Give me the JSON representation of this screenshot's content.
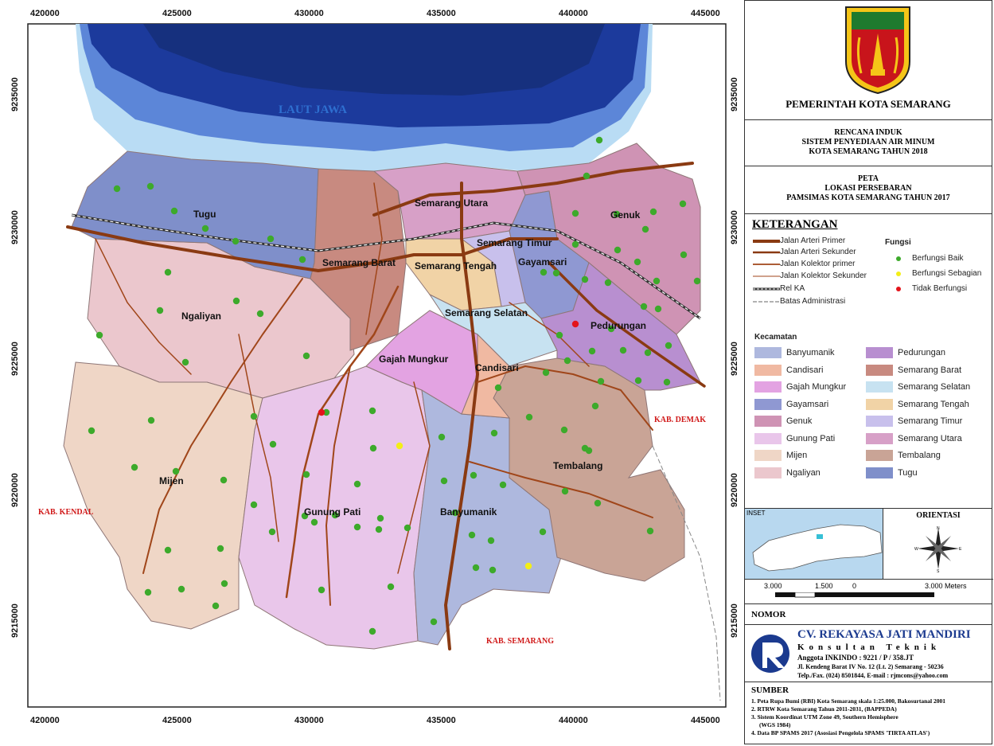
{
  "map": {
    "x_ticks": [
      "420000",
      "425000",
      "430000",
      "435000",
      "440000",
      "445000"
    ],
    "y_ticks": [
      "9235000",
      "9230000",
      "9225000",
      "9220000",
      "9215000"
    ],
    "sea_label": "LAUT JAWA",
    "districts": {
      "tugu": "Tugu",
      "ngaliyan": "Ngaliyan",
      "mijen": "Mijen",
      "gunung_pati": "Gunung Pati",
      "banyumanik": "Banyumanik",
      "semarang_barat": "Semarang Barat",
      "semarang_utara": "Semarang Utara",
      "semarang_tengah": "Semarang Tengah",
      "semarang_timur": "Semarang Timur",
      "gayamsari": "Gayamsari",
      "genuk": "Genuk",
      "pedurungan": "Pedurungan",
      "semarang_selatan": "Semarang Selatan",
      "gajah_mungkur": "Gajah Mungkur",
      "candisari": "Candisari",
      "tembalang": "Tembalang"
    },
    "regions": {
      "kendal": "KAB. KENDAL",
      "semarang": "KAB. SEMARANG",
      "demak": "KAB. DEMAK"
    },
    "colors": {
      "tugu": "#7f8fca",
      "ngaliyan": "#ebc7cd",
      "mijen": "#efd6c6",
      "gunung_pati": "#e9c6ea",
      "banyumanik": "#aeb8de",
      "semarang_barat": "#c88a80",
      "semarang_utara": "#d7a0c7",
      "semarang_tengah": "#f1d3a6",
      "semarang_timur": "#c8c0ec",
      "gayamsari": "#8f98d2",
      "genuk": "#cf93b4",
      "pedurungan": "#b88fd0",
      "semarang_selatan": "#c7e2f1",
      "gajah_mungkur": "#e3a3e2",
      "candisari": "#f0b9a2",
      "tembalang": "#c9a496",
      "arterial": "#8a3a12",
      "collector": "#a0461a",
      "sea_deep": "#1c3a9c",
      "sea_shallow": "#b9dcf4",
      "dot_good": "#3daa2b",
      "dot_partial": "#f3ee17",
      "dot_bad": "#e3141b"
    }
  },
  "panel": {
    "government": "PEMERINTAH KOTA SEMARANG",
    "plan_lines": [
      "RENCANA INDUK",
      "SISTEM PENYEDIAAN AIR MINUM",
      "KOTA SEMARANG TAHUN 2018"
    ],
    "title_lines": [
      "PETA",
      "LOKASI PERSEBARAN",
      "PAMSIMAS KOTA SEMARANG TAHUN 2017"
    ],
    "legend": {
      "heading": "KETERANGAN",
      "roads": [
        "Jalan Arteri Primer",
        "Jalan Arteri Sekunder",
        "Jalan Kolektor primer",
        "Jalan Kolektor Sekunder",
        "Rel KA",
        "Batas Administrasi"
      ],
      "function_heading": "Fungsi",
      "functions": [
        "Berfungsi Baik",
        "Berfungsi Sebagian",
        "Tidak Berfungsi"
      ],
      "kecamatan_heading": "Kecamatan",
      "kecamatan_left": [
        "Banyumanik",
        "Candisari",
        "Gajah Mungkur",
        "Gayamsari",
        "Genuk",
        "Gunung Pati",
        "Mijen",
        "Ngaliyan"
      ],
      "kecamatan_right": [
        "Pedurungan",
        "Semarang Barat",
        "Semarang Selatan",
        "Semarang Tengah",
        "Semarang Timur",
        "Semarang Utara",
        "Tembalang",
        "Tugu"
      ]
    },
    "inset_label": "INSET",
    "orientation": "ORIENTASI",
    "compass": {
      "n": "N",
      "s": "S",
      "e": "E",
      "w": "W"
    },
    "scale": [
      "3.000",
      "1.500",
      "0",
      "3.000 Meters"
    ],
    "nomor": "NOMOR",
    "company": {
      "name": "CV. REKAYASA JATI MANDIRI",
      "subtitle": "Konsultan  Teknik",
      "member": "Anggota INKINDO : 9221 / P / 358.JT",
      "address": "Jl. Kendeng Barat IV No. 12 (Lt. 2) Semarang - 50236",
      "contact": "Telp./Fax. (024) 8501844, E-mail : rjmcons@yahoo.com"
    },
    "sumber": {
      "heading": "SUMBER",
      "items": [
        "1. Peta Rupa Bumi (RBI) Kota Semarang skala 1:25.000,     Bakosurtanal 2001",
        "2. RTRW Kota Semarang Tahun 2011-2031, (BAPPEDA)",
        "3. Sistem Koordinat UTM Zone 49, Southern Hemisphere",
        "(WGS 1984)",
        "4. Data BP SPAMS 2017  (Asosiasi Pengelola SPAMS 'TIRTA ATLAS')"
      ]
    }
  }
}
